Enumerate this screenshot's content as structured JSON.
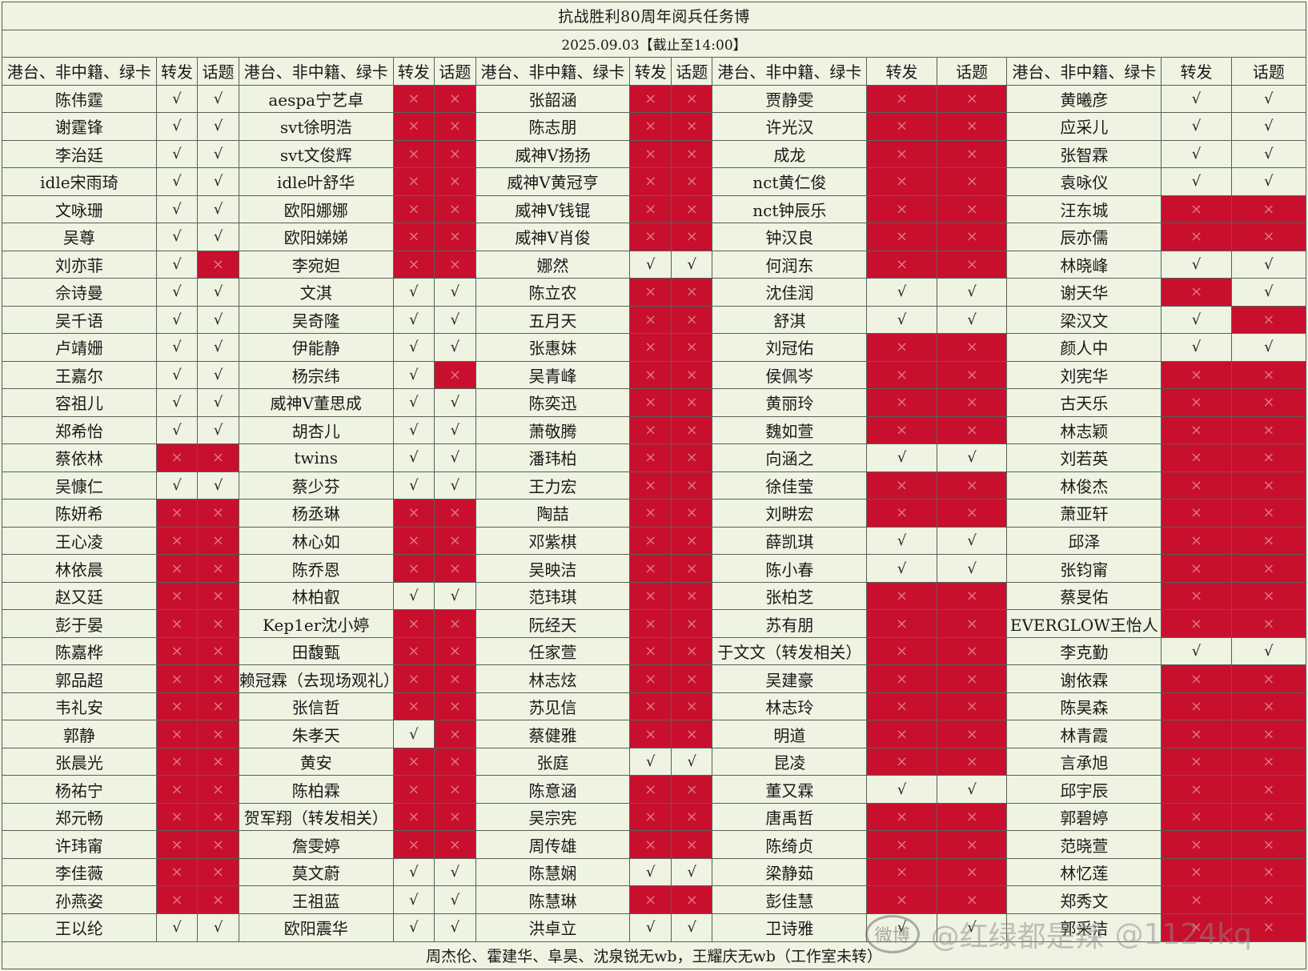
{
  "title": "抗战胜利80周年阅兵任务博",
  "date": "2025.09.03【截止至14:00】",
  "headers": {
    "name": "港台、非中籍、绿卡",
    "repost": "转发",
    "topic": "话题"
  },
  "marks": {
    "yes": "√",
    "no": "×"
  },
  "colors": {
    "no_fill": "#c8102e",
    "background": "#eef3e2"
  },
  "rows": [
    [
      [
        "陈伟霆",
        "y",
        "y"
      ],
      [
        "aespa宁艺卓",
        "n",
        "n"
      ],
      [
        "张韶涵",
        "n",
        "n"
      ],
      [
        "贾静雯",
        "n",
        "n"
      ],
      [
        "黄曦彦",
        "y",
        "y"
      ]
    ],
    [
      [
        "谢霆锋",
        "y",
        "y"
      ],
      [
        "svt徐明浩",
        "n",
        "n"
      ],
      [
        "陈志朋",
        "n",
        "n"
      ],
      [
        "许光汉",
        "n",
        "n"
      ],
      [
        "应采儿",
        "y",
        "y"
      ]
    ],
    [
      [
        "李治廷",
        "y",
        "y"
      ],
      [
        "svt文俊辉",
        "n",
        "n"
      ],
      [
        "威神V扬扬",
        "n",
        "n"
      ],
      [
        "成龙",
        "n",
        "n"
      ],
      [
        "张智霖",
        "y",
        "y"
      ]
    ],
    [
      [
        "idle宋雨琦",
        "y",
        "y"
      ],
      [
        "idle叶舒华",
        "n",
        "n"
      ],
      [
        "威神V黄冠亨",
        "n",
        "n"
      ],
      [
        "nct黄仁俊",
        "n",
        "n"
      ],
      [
        "袁咏仪",
        "y",
        "y"
      ]
    ],
    [
      [
        "文咏珊",
        "y",
        "y"
      ],
      [
        "欧阳娜娜",
        "n",
        "n"
      ],
      [
        "威神V钱锟",
        "n",
        "n"
      ],
      [
        "nct钟辰乐",
        "n",
        "n"
      ],
      [
        "汪东城",
        "n",
        "n"
      ]
    ],
    [
      [
        "吴尊",
        "y",
        "y"
      ],
      [
        "欧阳娣娣",
        "n",
        "n"
      ],
      [
        "威神V肖俊",
        "n",
        "n"
      ],
      [
        "钟汉良",
        "n",
        "n"
      ],
      [
        "辰亦儒",
        "n",
        "n"
      ]
    ],
    [
      [
        "刘亦菲",
        "y",
        "n"
      ],
      [
        "李宛妲",
        "n",
        "n"
      ],
      [
        "娜然",
        "y",
        "y"
      ],
      [
        "何润东",
        "n",
        "n"
      ],
      [
        "林晓峰",
        "y",
        "y"
      ]
    ],
    [
      [
        "佘诗曼",
        "y",
        "y"
      ],
      [
        "文淇",
        "y",
        "y"
      ],
      [
        "陈立农",
        "n",
        "n"
      ],
      [
        "沈佳润",
        "y",
        "y"
      ],
      [
        "谢天华",
        "n",
        "y"
      ]
    ],
    [
      [
        "吴千语",
        "y",
        "y"
      ],
      [
        "吴奇隆",
        "y",
        "y"
      ],
      [
        "五月天",
        "n",
        "n"
      ],
      [
        "舒淇",
        "y",
        "y"
      ],
      [
        "梁汉文",
        "y",
        "n"
      ]
    ],
    [
      [
        "卢靖姗",
        "y",
        "y"
      ],
      [
        "伊能静",
        "y",
        "y"
      ],
      [
        "张惠妹",
        "n",
        "n"
      ],
      [
        "刘冠佑",
        "n",
        "n"
      ],
      [
        "颜人中",
        "y",
        "y"
      ]
    ],
    [
      [
        "王嘉尔",
        "y",
        "y"
      ],
      [
        "杨宗纬",
        "y",
        "n"
      ],
      [
        "吴青峰",
        "n",
        "n"
      ],
      [
        "侯佩岑",
        "n",
        "n"
      ],
      [
        "刘宪华",
        "n",
        "n"
      ]
    ],
    [
      [
        "容祖儿",
        "y",
        "y"
      ],
      [
        "威神V董思成",
        "y",
        "y"
      ],
      [
        "陈奕迅",
        "n",
        "n"
      ],
      [
        "黄丽玲",
        "n",
        "n"
      ],
      [
        "古天乐",
        "n",
        "n"
      ]
    ],
    [
      [
        "郑希怡",
        "y",
        "y"
      ],
      [
        "胡杏儿",
        "y",
        "y"
      ],
      [
        "萧敬腾",
        "n",
        "n"
      ],
      [
        "魏如萱",
        "n",
        "n"
      ],
      [
        "林志颖",
        "n",
        "n"
      ]
    ],
    [
      [
        "蔡依林",
        "n",
        "n"
      ],
      [
        "twins",
        "y",
        "y"
      ],
      [
        "潘玮柏",
        "n",
        "n"
      ],
      [
        "向涵之",
        "y",
        "y"
      ],
      [
        "刘若英",
        "n",
        "n"
      ]
    ],
    [
      [
        "吴慷仁",
        "y",
        "y"
      ],
      [
        "蔡少芬",
        "y",
        "y"
      ],
      [
        "王力宏",
        "n",
        "n"
      ],
      [
        "徐佳莹",
        "n",
        "n"
      ],
      [
        "林俊杰",
        "n",
        "n"
      ]
    ],
    [
      [
        "陈妍希",
        "n",
        "n"
      ],
      [
        "杨丞琳",
        "n",
        "n"
      ],
      [
        "陶喆",
        "n",
        "n"
      ],
      [
        "刘畊宏",
        "n",
        "n"
      ],
      [
        "萧亚轩",
        "n",
        "n"
      ]
    ],
    [
      [
        "王心凌",
        "n",
        "n"
      ],
      [
        "林心如",
        "n",
        "n"
      ],
      [
        "邓紫棋",
        "n",
        "n"
      ],
      [
        "薛凯琪",
        "y",
        "y"
      ],
      [
        "邱泽",
        "n",
        "n"
      ]
    ],
    [
      [
        "林依晨",
        "n",
        "n"
      ],
      [
        "陈乔恩",
        "n",
        "n"
      ],
      [
        "吴映洁",
        "n",
        "n"
      ],
      [
        "陈小春",
        "y",
        "y"
      ],
      [
        "张钧甯",
        "n",
        "n"
      ]
    ],
    [
      [
        "赵又廷",
        "n",
        "n"
      ],
      [
        "林柏叡",
        "y",
        "y"
      ],
      [
        "范玮琪",
        "n",
        "n"
      ],
      [
        "张柏芝",
        "n",
        "n"
      ],
      [
        "蔡旻佑",
        "n",
        "n"
      ]
    ],
    [
      [
        "彭于晏",
        "n",
        "n"
      ],
      [
        "Kep1er沈小婷",
        "n",
        "n"
      ],
      [
        "阮经天",
        "n",
        "n"
      ],
      [
        "苏有朋",
        "n",
        "n"
      ],
      [
        "EVERGLOW王怡人",
        "n",
        "n"
      ]
    ],
    [
      [
        "陈嘉桦",
        "n",
        "n"
      ],
      [
        "田馥甄",
        "n",
        "n"
      ],
      [
        "任家萱",
        "n",
        "n"
      ],
      [
        "于文文（转发相关）",
        "n",
        "n"
      ],
      [
        "李克勤",
        "y",
        "y"
      ]
    ],
    [
      [
        "郭品超",
        "n",
        "n"
      ],
      [
        "赖冠霖（去现场观礼）",
        "n",
        "n"
      ],
      [
        "林志炫",
        "n",
        "n"
      ],
      [
        "吴建豪",
        "n",
        "n"
      ],
      [
        "谢依霖",
        "n",
        "n"
      ]
    ],
    [
      [
        "韦礼安",
        "n",
        "n"
      ],
      [
        "张信哲",
        "n",
        "n"
      ],
      [
        "苏见信",
        "n",
        "n"
      ],
      [
        "林志玲",
        "n",
        "n"
      ],
      [
        "陈昊森",
        "n",
        "n"
      ]
    ],
    [
      [
        "郭静",
        "n",
        "n"
      ],
      [
        "朱孝天",
        "y",
        "n"
      ],
      [
        "蔡健雅",
        "n",
        "n"
      ],
      [
        "明道",
        "n",
        "n"
      ],
      [
        "林青霞",
        "n",
        "n"
      ]
    ],
    [
      [
        "张晨光",
        "n",
        "n"
      ],
      [
        "黄安",
        "n",
        "n"
      ],
      [
        "张庭",
        "y",
        "y"
      ],
      [
        "昆凌",
        "n",
        "n"
      ],
      [
        "言承旭",
        "n",
        "n"
      ]
    ],
    [
      [
        "杨祐宁",
        "n",
        "n"
      ],
      [
        "陈柏霖",
        "n",
        "n"
      ],
      [
        "陈意涵",
        "n",
        "n"
      ],
      [
        "董又霖",
        "y",
        "y"
      ],
      [
        "邱宇辰",
        "n",
        "n"
      ]
    ],
    [
      [
        "郑元畅",
        "n",
        "n"
      ],
      [
        "贺军翔（转发相关）",
        "n",
        "n"
      ],
      [
        "吴宗宪",
        "n",
        "n"
      ],
      [
        "唐禹哲",
        "n",
        "n"
      ],
      [
        "郭碧婷",
        "n",
        "n"
      ]
    ],
    [
      [
        "许玮甯",
        "n",
        "n"
      ],
      [
        "詹雯婷",
        "n",
        "n"
      ],
      [
        "周传雄",
        "n",
        "n"
      ],
      [
        "陈绮贞",
        "n",
        "n"
      ],
      [
        "范晓萱",
        "n",
        "n"
      ]
    ],
    [
      [
        "李佳薇",
        "n",
        "n"
      ],
      [
        "莫文蔚",
        "y",
        "y"
      ],
      [
        "陈慧娴",
        "y",
        "y"
      ],
      [
        "梁静茹",
        "n",
        "n"
      ],
      [
        "林忆莲",
        "n",
        "n"
      ]
    ],
    [
      [
        "孙燕姿",
        "n",
        "n"
      ],
      [
        "王祖蓝",
        "y",
        "y"
      ],
      [
        "陈慧琳",
        "n",
        "n"
      ],
      [
        "彭佳慧",
        "n",
        "n"
      ],
      [
        "郑秀文",
        "n",
        "n"
      ]
    ],
    [
      [
        "王以纶",
        "y",
        "y"
      ],
      [
        "欧阳震华",
        "y",
        "y"
      ],
      [
        "洪卓立",
        "y",
        "y"
      ],
      [
        "卫诗雅",
        "y",
        "y"
      ],
      [
        "郭采洁",
        "n",
        "n"
      ]
    ]
  ],
  "footer": "周杰伦、霍建华、阜昊、沈泉锐无wb，王耀庆无wb（工作室未转）",
  "watermark": {
    "icon_name": "weibo-logo-icon",
    "logo_label": "微博",
    "text1": "@红绿都是辣",
    "text2": "@1124kq"
  }
}
